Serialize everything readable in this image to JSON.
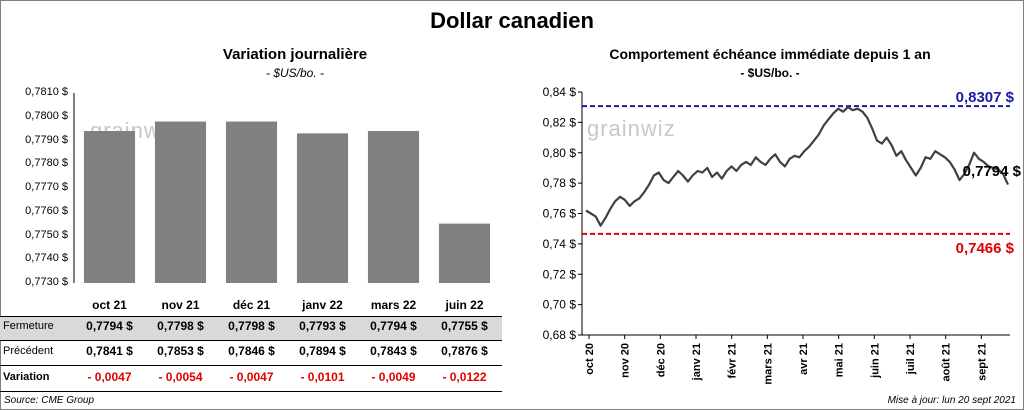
{
  "title": "Dollar canadien",
  "footer": {
    "source": "Source: CME Group",
    "updated": "Mise à jour: lun 20 sept 2021"
  },
  "watermark": "grainwiz",
  "chart_data": [
    {
      "type": "bar",
      "title": "Variation  journalière",
      "subtitle": "- $US/bo. -",
      "categories": [
        "oct 21",
        "nov 21",
        "déc 21",
        "janv 22",
        "mars 22",
        "juin 22"
      ],
      "values": [
        0.7794,
        0.7798,
        0.7798,
        0.7793,
        0.7794,
        0.7755
      ],
      "ylim": [
        0.773,
        0.781
      ],
      "yticks": [
        "0,7730 $",
        "0,7740 $",
        "0,7750 $",
        "0,7760 $",
        "0,7770 $",
        "0,7780 $",
        "0,7790 $",
        "0,7800 $",
        "0,7810 $"
      ],
      "bar_color": "#808080",
      "table": {
        "rows": [
          {
            "label": "Fermeture",
            "values": [
              "0,7794  $",
              "0,7798  $",
              "0,7798  $",
              "0,7793  $",
              "0,7794  $",
              "0,7755  $"
            ]
          },
          {
            "label": "Précédent",
            "values": [
              "0,7841  $",
              "0,7853  $",
              "0,7846  $",
              "0,7894  $",
              "0,7843  $",
              "0,7876  $"
            ]
          },
          {
            "label": "Variation",
            "values": [
              "- 0,0047",
              "- 0,0054",
              "- 0,0047",
              "- 0,0101",
              "- 0,0049",
              "- 0,0122"
            ]
          }
        ]
      }
    },
    {
      "type": "line",
      "title": "Comportement échéance immédiate depuis 1 an",
      "subtitle": "- $US/bo. -",
      "ylim": [
        0.68,
        0.84
      ],
      "yticks": [
        "0,68 $",
        "0,70 $",
        "0,72 $",
        "0,74 $",
        "0,76 $",
        "0,78 $",
        "0,80 $",
        "0,82 $",
        "0,84 $"
      ],
      "x_labels": [
        "oct 20",
        "nov 20",
        "déc 20",
        "janv 21",
        "févr 21",
        "mars 21",
        "avr 21",
        "mai 21",
        "juin 21",
        "juil 21",
        "août 21",
        "sept 21"
      ],
      "series": [
        {
          "name": "échéance immédiate",
          "color": "#404040",
          "values": [
            0.762,
            0.76,
            0.758,
            0.752,
            0.757,
            0.763,
            0.768,
            0.771,
            0.769,
            0.765,
            0.768,
            0.77,
            0.774,
            0.779,
            0.785,
            0.787,
            0.782,
            0.78,
            0.784,
            0.788,
            0.785,
            0.781,
            0.785,
            0.788,
            0.787,
            0.79,
            0.784,
            0.787,
            0.783,
            0.788,
            0.791,
            0.788,
            0.792,
            0.794,
            0.792,
            0.797,
            0.794,
            0.792,
            0.796,
            0.799,
            0.794,
            0.791,
            0.796,
            0.798,
            0.797,
            0.801,
            0.804,
            0.808,
            0.812,
            0.818,
            0.822,
            0.826,
            0.829,
            0.827,
            0.83,
            0.828,
            0.829,
            0.827,
            0.823,
            0.816,
            0.808,
            0.806,
            0.81,
            0.805,
            0.798,
            0.801,
            0.795,
            0.79,
            0.785,
            0.79,
            0.797,
            0.796,
            0.801,
            0.799,
            0.797,
            0.794,
            0.789,
            0.782,
            0.786,
            0.792,
            0.8,
            0.796,
            0.794,
            0.791,
            0.79,
            0.789,
            0.786,
            0.779
          ]
        }
      ],
      "ref_lines": [
        {
          "value": 0.8307,
          "label": "0,8307 $",
          "color": "#1a1aa6"
        },
        {
          "value": 0.7466,
          "label": "0,7466 $",
          "color": "#e00000"
        }
      ],
      "last_label": {
        "value": 0.7794,
        "label": "0,7794 $",
        "color": "#000000"
      }
    }
  ]
}
